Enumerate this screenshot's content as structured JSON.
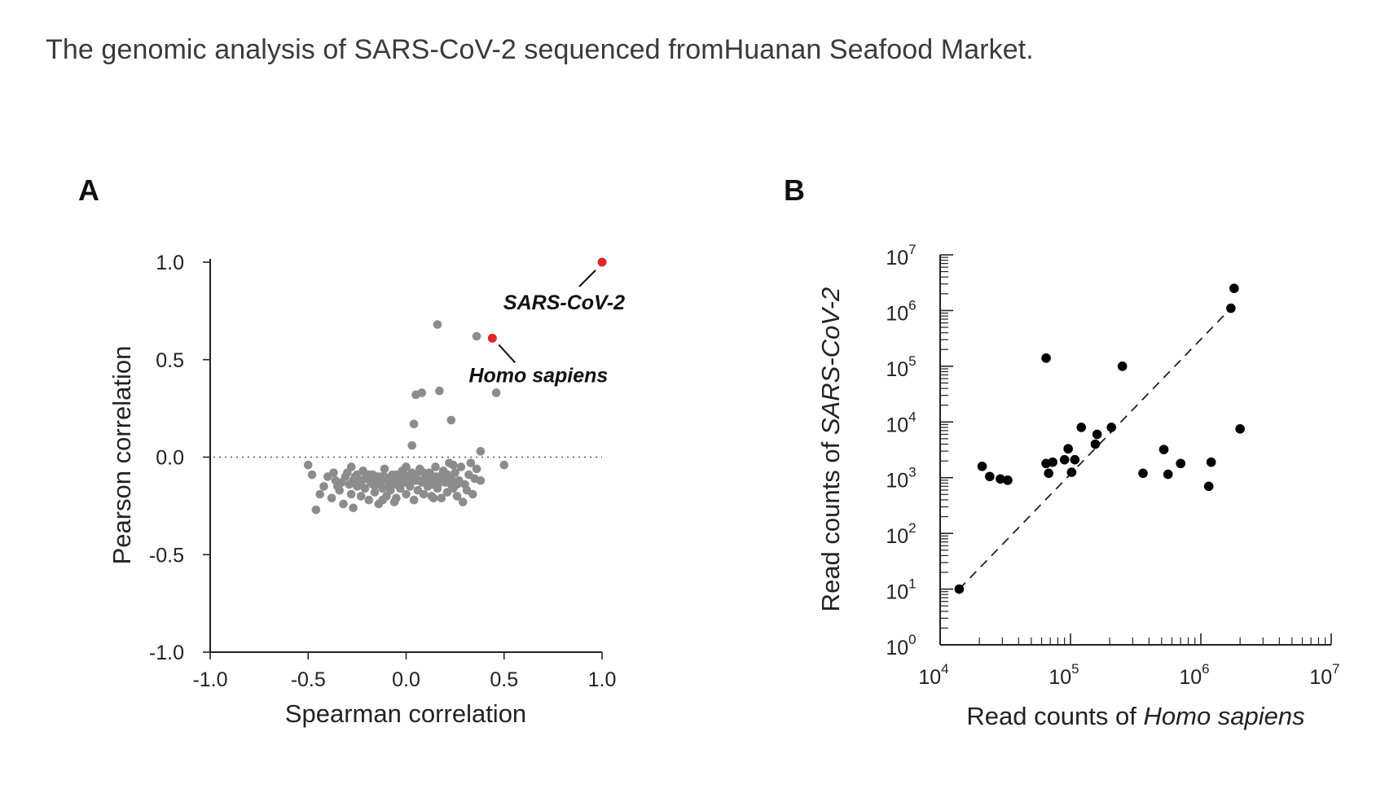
{
  "caption": "The genomic analysis of SARS-CoV-2 sequenced fromHuanan Seafood Market.",
  "chart_data": [
    {
      "panel": "A",
      "type": "scatter",
      "xlabel": "Spearman correlation",
      "ylabel": "Pearson correlation",
      "xlim": [
        -1.0,
        1.0
      ],
      "ylim": [
        -1.0,
        1.0
      ],
      "xticks": [
        "-1.0",
        "-0.5",
        "0.0",
        "0.5",
        "1.0"
      ],
      "yticks": [
        "1.0",
        "0.5",
        "0.0",
        "-0.5",
        "-1.0"
      ],
      "reference_line": {
        "y": 0.0,
        "style": "dotted"
      },
      "point_color": "#8c8c8c",
      "highlight_color": "#e0252a",
      "highlights": [
        {
          "label": "SARS-CoV-2",
          "x": 1.0,
          "y": 1.0
        },
        {
          "label": "Homo sapiens",
          "x": 0.44,
          "y": 0.61
        }
      ],
      "points": [
        [
          0.16,
          0.68
        ],
        [
          0.36,
          0.62
        ],
        [
          0.46,
          0.33
        ],
        [
          0.05,
          0.32
        ],
        [
          0.08,
          0.33
        ],
        [
          0.17,
          0.34
        ],
        [
          0.04,
          0.17
        ],
        [
          0.23,
          0.19
        ],
        [
          0.03,
          0.06
        ],
        [
          0.38,
          0.03
        ],
        [
          0.5,
          -0.04
        ],
        [
          -0.5,
          -0.04
        ],
        [
          -0.48,
          -0.09
        ],
        [
          -0.46,
          -0.27
        ],
        [
          -0.4,
          -0.1
        ],
        [
          -0.38,
          -0.21
        ],
        [
          -0.36,
          -0.12
        ],
        [
          -0.34,
          -0.17
        ],
        [
          -0.32,
          -0.24
        ],
        [
          -0.3,
          -0.08
        ],
        [
          -0.29,
          -0.14
        ],
        [
          -0.28,
          -0.19
        ],
        [
          -0.27,
          -0.26
        ],
        [
          -0.26,
          -0.1
        ],
        [
          -0.25,
          -0.15
        ],
        [
          -0.24,
          -0.12
        ],
        [
          -0.23,
          -0.2
        ],
        [
          -0.22,
          -0.07
        ],
        [
          -0.21,
          -0.16
        ],
        [
          -0.2,
          -0.11
        ],
        [
          -0.19,
          -0.22
        ],
        [
          -0.18,
          -0.13
        ],
        [
          -0.17,
          -0.09
        ],
        [
          -0.16,
          -0.18
        ],
        [
          -0.15,
          -0.14
        ],
        [
          -0.14,
          -0.24
        ],
        [
          -0.13,
          -0.1
        ],
        [
          -0.12,
          -0.16
        ],
        [
          -0.11,
          -0.06
        ],
        [
          -0.1,
          -0.2
        ],
        [
          -0.09,
          -0.12
        ],
        [
          -0.08,
          -0.17
        ],
        [
          -0.07,
          -0.09
        ],
        [
          -0.06,
          -0.14
        ],
        [
          -0.05,
          -0.21
        ],
        [
          -0.04,
          -0.11
        ],
        [
          -0.03,
          -0.16
        ],
        [
          -0.02,
          -0.07
        ],
        [
          -0.01,
          -0.13
        ],
        [
          0.0,
          -0.19
        ],
        [
          0.01,
          -0.1
        ],
        [
          0.02,
          -0.15
        ],
        [
          0.03,
          -0.08
        ],
        [
          0.04,
          -0.22
        ],
        [
          0.05,
          -0.12
        ],
        [
          0.06,
          -0.17
        ],
        [
          0.07,
          -0.06
        ],
        [
          0.08,
          -0.13
        ],
        [
          0.09,
          -0.19
        ],
        [
          0.1,
          -0.1
        ],
        [
          0.11,
          -0.15
        ],
        [
          0.12,
          -0.08
        ],
        [
          0.13,
          -0.2
        ],
        [
          0.14,
          -0.12
        ],
        [
          0.15,
          -0.05
        ],
        [
          0.16,
          -0.16
        ],
        [
          0.17,
          -0.1
        ],
        [
          0.18,
          -0.21
        ],
        [
          0.19,
          -0.07
        ],
        [
          0.2,
          -0.13
        ],
        [
          0.21,
          -0.18
        ],
        [
          0.22,
          -0.03
        ],
        [
          0.23,
          -0.11
        ],
        [
          0.24,
          -0.16
        ],
        [
          0.25,
          -0.08
        ],
        [
          0.26,
          -0.2
        ],
        [
          0.27,
          -0.12
        ],
        [
          0.28,
          -0.05
        ],
        [
          0.3,
          -0.14
        ],
        [
          0.32,
          -0.09
        ],
        [
          0.34,
          -0.19
        ],
        [
          0.36,
          -0.06
        ],
        [
          0.38,
          -0.12
        ],
        [
          0.29,
          -0.23
        ],
        [
          -0.33,
          -0.13
        ],
        [
          -0.31,
          -0.1
        ],
        [
          -0.27,
          -0.12
        ],
        [
          -0.25,
          -0.09
        ],
        [
          -0.23,
          -0.14
        ],
        [
          -0.21,
          -0.11
        ],
        [
          -0.19,
          -0.09
        ],
        [
          -0.17,
          -0.14
        ],
        [
          -0.15,
          -0.1
        ],
        [
          -0.13,
          -0.13
        ],
        [
          -0.11,
          -0.1
        ],
        [
          -0.09,
          -0.15
        ],
        [
          -0.07,
          -0.12
        ],
        [
          -0.05,
          -0.09
        ],
        [
          -0.03,
          -0.12
        ],
        [
          -0.01,
          -0.09
        ],
        [
          0.01,
          -0.13
        ],
        [
          0.03,
          -0.11
        ],
        [
          0.05,
          -0.09
        ],
        [
          0.07,
          -0.12
        ],
        [
          0.09,
          -0.08
        ],
        [
          0.11,
          -0.11
        ],
        [
          0.13,
          -0.14
        ],
        [
          0.15,
          -0.1
        ],
        [
          0.17,
          -0.13
        ],
        [
          0.19,
          -0.11
        ],
        [
          0.21,
          -0.09
        ],
        [
          0.23,
          -0.14
        ],
        [
          -0.42,
          -0.15
        ],
        [
          -0.44,
          -0.19
        ],
        [
          -0.35,
          -0.15
        ],
        [
          -0.37,
          -0.08
        ],
        [
          0.33,
          -0.03
        ],
        [
          0.31,
          -0.17
        ],
        [
          0.35,
          -0.11
        ],
        [
          -0.12,
          -0.22
        ],
        [
          0.0,
          -0.05
        ],
        [
          -0.06,
          -0.23
        ],
        [
          0.14,
          -0.21
        ],
        [
          0.24,
          -0.04
        ],
        [
          0.26,
          -0.14
        ],
        [
          -0.28,
          -0.05
        ]
      ]
    },
    {
      "panel": "B",
      "type": "scatter",
      "xscale": "log",
      "yscale": "log",
      "xlabel_prefix": "Read counts of",
      "xlabel_italic": "Homo sapiens",
      "ylabel_prefix": "Read counts of",
      "ylabel_italic": "SARS-CoV-2",
      "xlim": [
        10000,
        10000000
      ],
      "ylim": [
        1,
        10000000
      ],
      "xticks": [
        {
          "base": "10",
          "exp": "4"
        },
        {
          "base": "10",
          "exp": "5"
        },
        {
          "base": "10",
          "exp": "6"
        },
        {
          "base": "10",
          "exp": "7"
        }
      ],
      "yticks": [
        {
          "base": "10",
          "exp": "0"
        },
        {
          "base": "10",
          "exp": "1"
        },
        {
          "base": "10",
          "exp": "2"
        },
        {
          "base": "10",
          "exp": "3"
        },
        {
          "base": "10",
          "exp": "4"
        },
        {
          "base": "10",
          "exp": "5"
        },
        {
          "base": "10",
          "exp": "6"
        },
        {
          "base": "10",
          "exp": "7"
        }
      ],
      "point_color": "#000000",
      "fit_line": {
        "x": [
          14000,
          1700000
        ],
        "y": [
          10,
          1100000
        ],
        "style": "dashed"
      },
      "points": [
        [
          14000,
          10
        ],
        [
          21000,
          1600
        ],
        [
          24000,
          1050
        ],
        [
          29000,
          950
        ],
        [
          33000,
          900
        ],
        [
          65000,
          140000
        ],
        [
          65000,
          1800
        ],
        [
          68000,
          1200
        ],
        [
          73000,
          1900
        ],
        [
          90000,
          2100
        ],
        [
          96000,
          3300
        ],
        [
          102000,
          1250
        ],
        [
          108000,
          2100
        ],
        [
          121000,
          8000
        ],
        [
          155000,
          4000
        ],
        [
          160000,
          6000
        ],
        [
          206000,
          8000
        ],
        [
          250000,
          100000
        ],
        [
          360000,
          1200
        ],
        [
          520000,
          3200
        ],
        [
          560000,
          1150
        ],
        [
          700000,
          1800
        ],
        [
          1150000,
          700
        ],
        [
          1200000,
          1900
        ],
        [
          1700000,
          1100000
        ],
        [
          1800000,
          2500000
        ],
        [
          2000000,
          7500
        ]
      ]
    }
  ]
}
